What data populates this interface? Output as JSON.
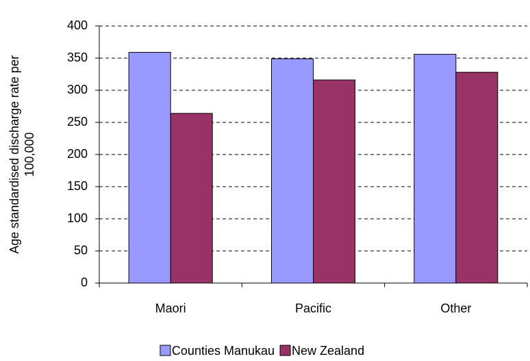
{
  "chart_data": {
    "type": "bar",
    "ylabel": [
      "Age standardised discharge rate per",
      "100,000"
    ],
    "categories": [
      "Maori",
      "Pacific",
      "Other"
    ],
    "series": [
      {
        "name": "Counties Manukau",
        "color": "#9999ff",
        "values": [
          359,
          349,
          356
        ]
      },
      {
        "name": "New Zealand",
        "color": "#993366",
        "values": [
          264,
          316,
          328
        ]
      }
    ],
    "ylim": [
      0,
      400
    ],
    "yticks": [
      0,
      50,
      100,
      150,
      200,
      250,
      300,
      350,
      400
    ],
    "grid": true,
    "legend": "bottom"
  }
}
